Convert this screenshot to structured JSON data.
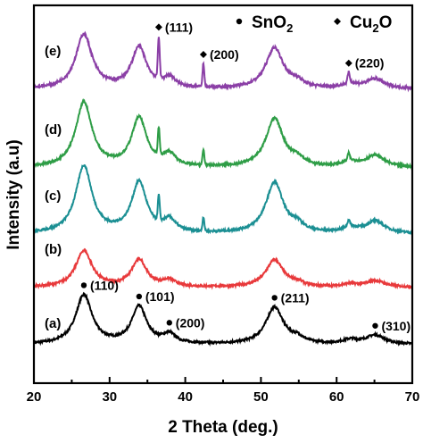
{
  "chart_data": {
    "type": "line",
    "xlabel": "2 Theta (deg.)",
    "ylabel": "Intensity (a.u)",
    "xlim": [
      20,
      70
    ],
    "xticks": [
      "20",
      "30",
      "40",
      "50",
      "60",
      "70"
    ],
    "legend": {
      "placement": "top-right",
      "items": [
        {
          "marker": "circle",
          "text": "SnO",
          "sub": "2"
        },
        {
          "marker": "diamond",
          "text": "Cu",
          "sub": "2",
          "tail": "O"
        }
      ]
    },
    "sno2_peaks": [
      {
        "center": 26.6,
        "width": 1.3,
        "height": 1.0
      },
      {
        "center": 33.9,
        "width": 1.2,
        "height": 0.75
      },
      {
        "center": 37.9,
        "width": 1.0,
        "height": 0.18
      },
      {
        "center": 51.8,
        "width": 1.4,
        "height": 0.75
      },
      {
        "center": 54.8,
        "width": 1.0,
        "height": 0.1
      },
      {
        "center": 61.8,
        "width": 1.2,
        "height": 0.08
      },
      {
        "center": 65.1,
        "width": 1.5,
        "height": 0.18
      }
    ],
    "cu2o_peaks": [
      {
        "center": 36.5,
        "width": 0.12,
        "height": 0.8
      },
      {
        "center": 42.4,
        "width": 0.12,
        "height": 0.45
      },
      {
        "center": 61.6,
        "width": 0.14,
        "height": 0.2
      }
    ],
    "series": [
      {
        "label": "(a)",
        "color": "#000000",
        "baseline": 0.33,
        "scale": 0.95,
        "cu2o": 0.0,
        "noise": 0.02,
        "slope": 0.0
      },
      {
        "label": "(b)",
        "color": "#e8393b",
        "baseline": 0.0,
        "scale": 0.7,
        "cu2o": 0.0,
        "noise": 0.02,
        "slope": 0.0
      },
      {
        "label": "(c)",
        "color": "#1b8f93",
        "baseline": 0.0,
        "scale": 1.3,
        "cu2o": 0.6,
        "noise": 0.02,
        "slope": 0.0
      },
      {
        "label": "(d)",
        "color": "#2e9d46",
        "baseline": 0.0,
        "scale": 1.25,
        "cu2o": 0.65,
        "noise": 0.02,
        "slope": 0.0
      },
      {
        "label": "(e)",
        "color": "#8b3fa6",
        "baseline": 0.0,
        "scale": 1.05,
        "cu2o": 1.0,
        "noise": 0.025,
        "slope": 0.0
      }
    ],
    "annotations": [
      {
        "text": "(110)",
        "marker": "circle",
        "series": 0,
        "x": 26.6
      },
      {
        "text": "(101)",
        "marker": "circle",
        "series": 0,
        "x": 33.9
      },
      {
        "text": "(200)",
        "marker": "circle",
        "series": 0,
        "x": 37.9
      },
      {
        "text": "(211)",
        "marker": "circle",
        "series": 0,
        "x": 51.8
      },
      {
        "text": "(310)",
        "marker": "circle",
        "series": 0,
        "x": 65.1
      },
      {
        "text": "(111)",
        "marker": "diamond",
        "series": 4,
        "x": 36.5
      },
      {
        "text": "(200)",
        "marker": "diamond",
        "series": 4,
        "x": 42.4
      },
      {
        "text": "(220)",
        "marker": "diamond",
        "series": 4,
        "x": 61.6
      }
    ]
  }
}
